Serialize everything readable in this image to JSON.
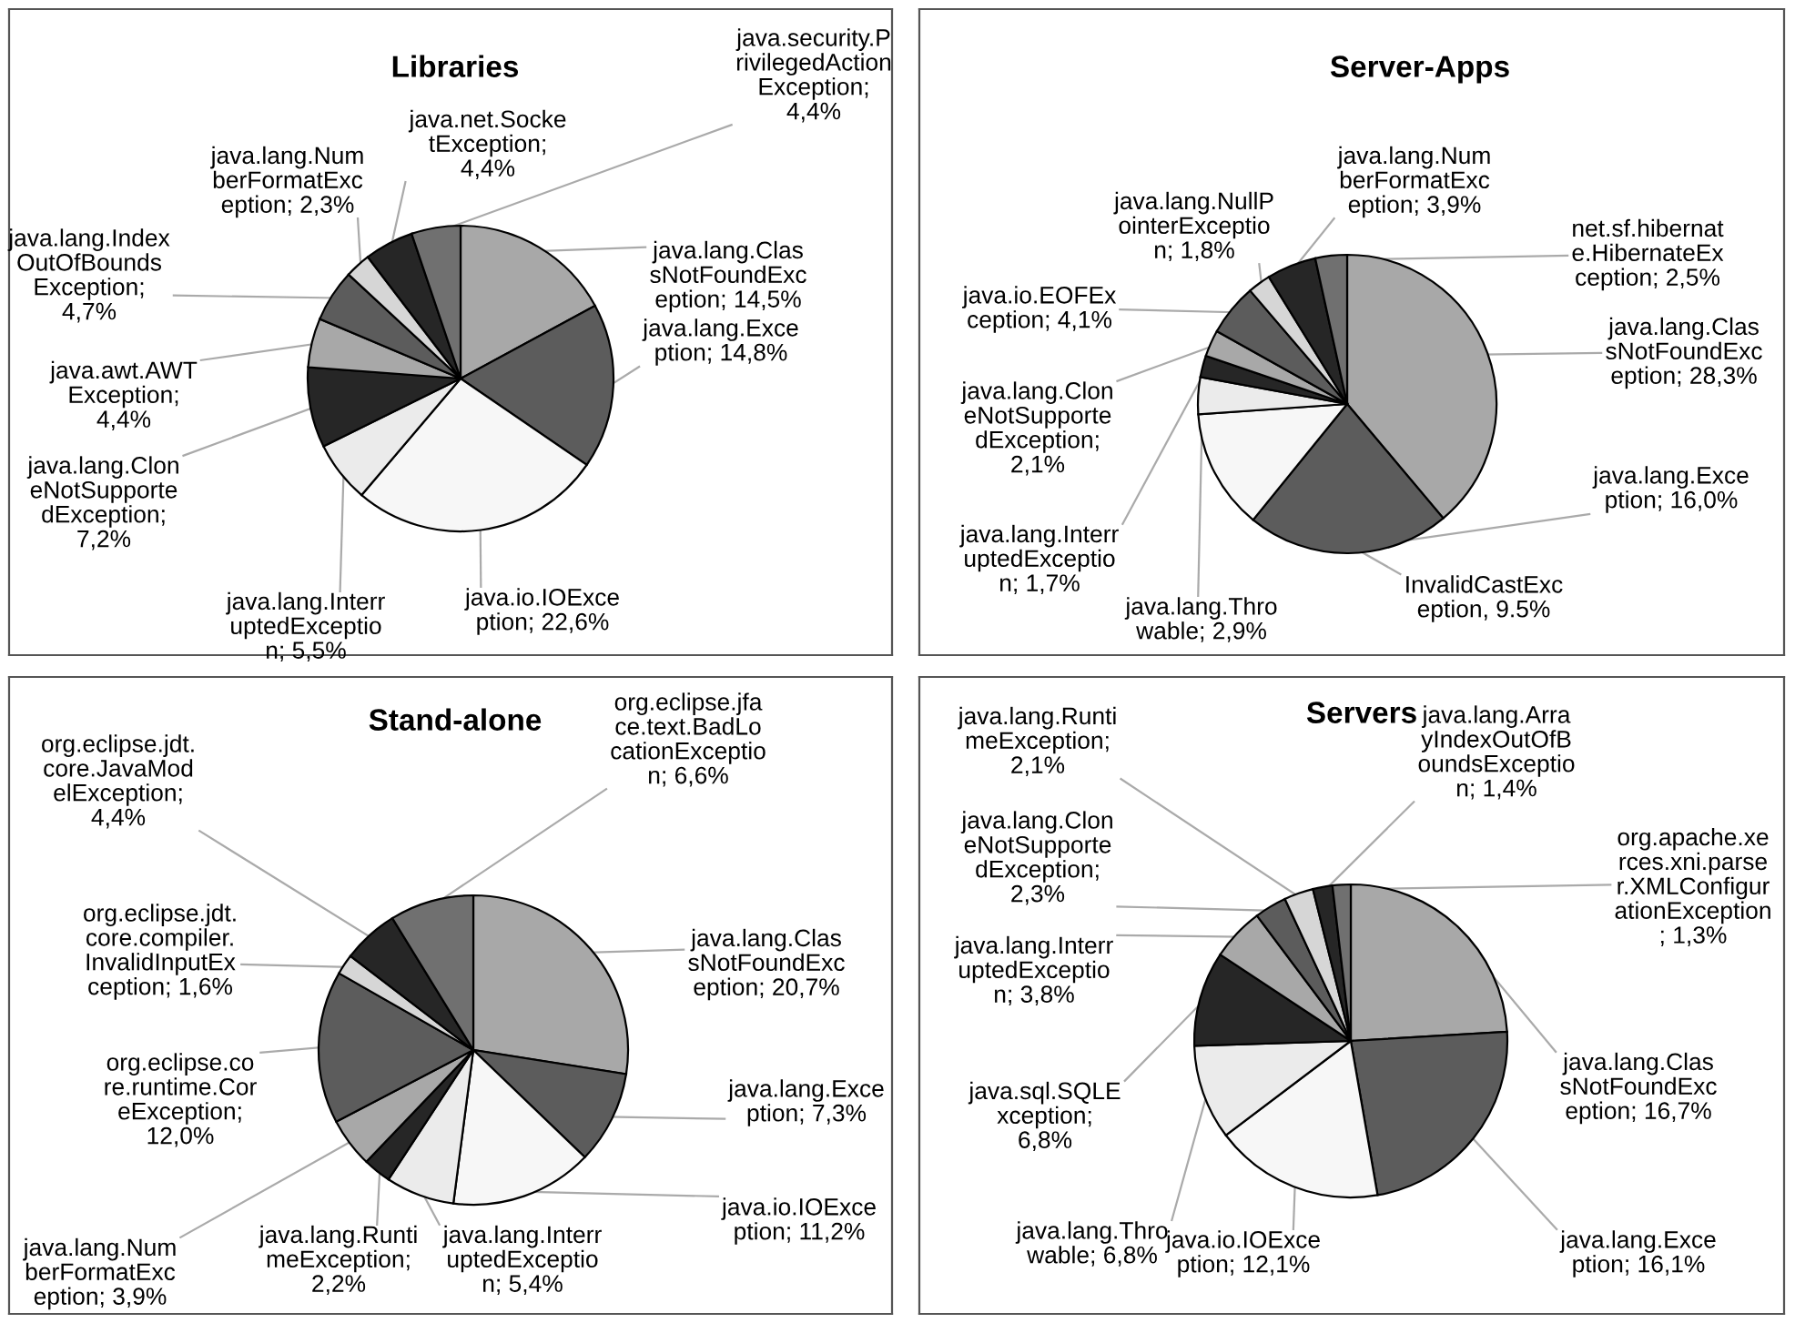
{
  "chart_data": [
    {
      "type": "pie",
      "title": "Libraries",
      "categories": [
        "java.lang.Clas\nsNotFoundExc\neption",
        "java.lang.Exce\nption",
        "java.io.IOExce\nption",
        "java.lang.Interr\nuptedExceptio\nn",
        "java.lang.Clon\neNotSupporte\ndException",
        "java.awt.AWT\nException",
        "java.lang.Index\nOutOfBounds\nException",
        "java.lang.Num\nberFormatExc\neption",
        "java.net.Socke\ntException",
        "java.security.P\nrivilegedAction\nException"
      ],
      "values": [
        14.5,
        14.8,
        22.6,
        5.5,
        7.2,
        4.4,
        4.7,
        2.3,
        4.4,
        4.4
      ],
      "value_labels": [
        "; 14,5%",
        "; 14,8%",
        "; 22,6%",
        "; 5,5%",
        ";\n7,2%",
        ";\n4,4%",
        ";\n4,7%",
        "; 2,3%",
        ";\n4,4%",
        ";\n4,4%"
      ],
      "colors": [
        "#a8a8a8",
        "#5c5c5c",
        "#f7f7f7",
        "#ebebeb",
        "#262626",
        "#a8a8a8",
        "#5c5c5c",
        "#d6d6d6",
        "#262626",
        "#707070"
      ]
    },
    {
      "type": "pie",
      "title": "Server-Apps",
      "categories": [
        "java.lang.Clas\nsNotFoundExc\neption",
        "java.lang.Exce\nption",
        "InvalidCastExc\neption",
        "java.lang.Thro\nwable",
        "java.lang.Interr\nuptedExceptio\nn",
        "java.lang.Clon\neNotSupporte\ndException",
        "java.io.EOFEx\nception",
        "java.lang.NullP\nointerExceptio\nn",
        "java.lang.Num\nberFormatExc\neption",
        "net.sf.hibernat\ne.HibernateEx\nception"
      ],
      "values": [
        28.3,
        16.0,
        9.5,
        2.9,
        1.7,
        2.1,
        4.1,
        1.8,
        3.9,
        2.5
      ],
      "value_labels": [
        "; 28,3%",
        "; 16,0%",
        ", 9.5%",
        "; 2,9%",
        "; 1,7%",
        ";\n2,1%",
        "; 4,1%",
        "; 1,8%",
        "; 3,9%",
        "; 2,5%"
      ],
      "colors": [
        "#a8a8a8",
        "#5c5c5c",
        "#f7f7f7",
        "#ebebeb",
        "#262626",
        "#a8a8a8",
        "#5c5c5c",
        "#d6d6d6",
        "#262626",
        "#707070"
      ]
    },
    {
      "type": "pie",
      "title": "Stand-alone",
      "categories": [
        "java.lang.Clas\nsNotFoundExc\neption",
        "java.lang.Exce\nption",
        "java.io.IOExce\nption",
        "java.lang.Interr\nuptedExceptio\nn",
        "java.lang.Runti\nmeException",
        "java.lang.Num\nberFormatExc\neption",
        "org.eclipse.co\nre.runtime.Cor\neException",
        "org.eclipse.jdt.\ncore.compiler.\nInvalidInputEx\nception",
        "org.eclipse.jdt.\ncore.JavaMod\nelException",
        "org.eclipse.jfa\nce.text.BadLo\ncationExceptio\nn"
      ],
      "values": [
        20.7,
        7.3,
        11.2,
        5.4,
        2.2,
        3.9,
        12.0,
        1.6,
        4.4,
        6.6
      ],
      "value_labels": [
        "; 20,7%",
        "; 7,3%",
        "; 11,2%",
        "; 5,4%",
        ";\n2,2%",
        "; 3,9%",
        ";\n12,0%",
        "; 1,6%",
        ";\n4,4%",
        "; 6,6%"
      ],
      "colors": [
        "#a8a8a8",
        "#5c5c5c",
        "#f7f7f7",
        "#ebebeb",
        "#262626",
        "#a8a8a8",
        "#5c5c5c",
        "#d6d6d6",
        "#262626",
        "#707070"
      ]
    },
    {
      "type": "pie",
      "title": "Servers",
      "categories": [
        "java.lang.Clas\nsNotFoundExc\neption",
        "java.lang.Exce\nption",
        "java.io.IOExce\nption",
        "java.lang.Thro\nwable",
        "java.sql.SQLE\nxception",
        "java.lang.Interr\nuptedExceptio\nn",
        "java.lang.Clon\neNotSupporte\ndException",
        "java.lang.Runti\nmeException",
        "java.lang.Arra\nyIndexOutOfB\noundsExceptio\nn",
        "org.apache.xe\nrces.xni.parse\nr.XMLConfigur\nationException"
      ],
      "values": [
        16.7,
        16.1,
        12.1,
        6.8,
        6.8,
        3.8,
        2.3,
        2.1,
        1.4,
        1.3
      ],
      "value_labels": [
        "; 16,7%",
        "; 16,1%",
        "; 12,1%",
        "; 6,8%",
        ";\n6,8%",
        "; 3,8%",
        ";\n2,3%",
        ";\n2,1%",
        "; 1,4%",
        "\n; 1,3%"
      ],
      "colors": [
        "#a8a8a8",
        "#5c5c5c",
        "#f7f7f7",
        "#ebebeb",
        "#262626",
        "#a8a8a8",
        "#5c5c5c",
        "#d6d6d6",
        "#262626",
        "#707070"
      ]
    }
  ]
}
